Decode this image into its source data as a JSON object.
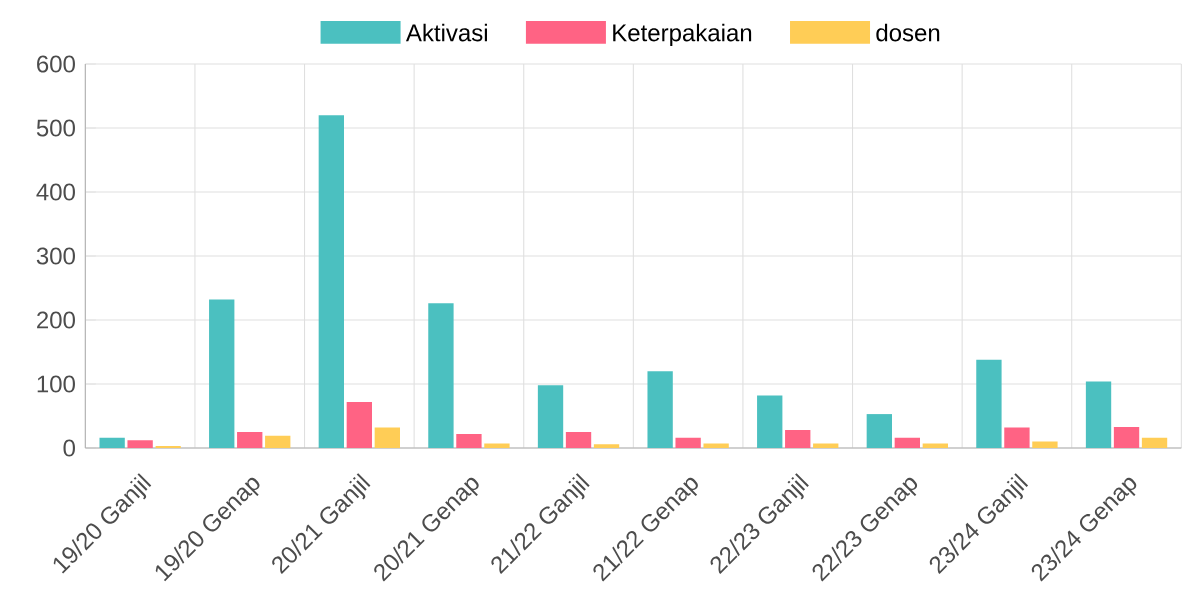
{
  "chart_data": {
    "type": "bar",
    "categories": [
      "19/20 Ganjil",
      "19/20 Genap",
      "20/21 Ganjil",
      "20/21 Genap",
      "21/22 Ganjil",
      "21/22 Genap",
      "22/23 Ganjil",
      "22/23 Genap",
      "23/24 Ganjil",
      "23/24 Genap"
    ],
    "series": [
      {
        "name": "Aktivasi",
        "color": "#4bc0c0",
        "values": [
          16,
          232,
          520,
          226,
          98,
          120,
          82,
          53,
          138,
          104
        ]
      },
      {
        "name": "Keterpakaian",
        "color": "#ff6384",
        "values": [
          12,
          25,
          72,
          22,
          25,
          16,
          28,
          16,
          32,
          33
        ]
      },
      {
        "name": "dosen",
        "color": "#ffcd56",
        "values": [
          3,
          19,
          32,
          7,
          6,
          7,
          7,
          7,
          10,
          16
        ]
      }
    ],
    "ylim": [
      0,
      600
    ],
    "yticks": [
      0,
      100,
      200,
      300,
      400,
      500,
      600
    ],
    "grid": true,
    "legend": "top"
  }
}
